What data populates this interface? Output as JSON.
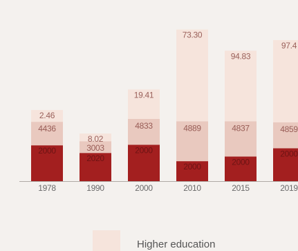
{
  "chart_data": {
    "type": "bar",
    "stacked": true,
    "categories": [
      "1978",
      "1990",
      "2000",
      "2010",
      "2015",
      "2019"
    ],
    "series": [
      {
        "name": "",
        "color": "#a31f1f",
        "labels": [
          "2000",
          "2020",
          "2000",
          "2000",
          "2000",
          "2000"
        ],
        "values": [
          30.5,
          24,
          31,
          17,
          21,
          28
        ]
      },
      {
        "name": "",
        "color": "#e9c9bf",
        "labels": [
          "4436",
          "3003",
          "4833",
          "4889",
          "4837",
          "4859"
        ],
        "values": [
          20,
          10,
          22,
          34,
          30,
          22
        ]
      },
      {
        "name": "Higher education",
        "color": "#f6e4dc",
        "labels": [
          "2.46",
          "8.02",
          "19.41",
          "73.30",
          "94.83",
          "97.4"
        ],
        "values": [
          10,
          6.5,
          25,
          78,
          60,
          70
        ]
      }
    ],
    "legend": {
      "position": "bottom",
      "entries": [
        "Higher education"
      ]
    },
    "axis_color": "#b0aaa5",
    "background": "#f4f1ee"
  }
}
